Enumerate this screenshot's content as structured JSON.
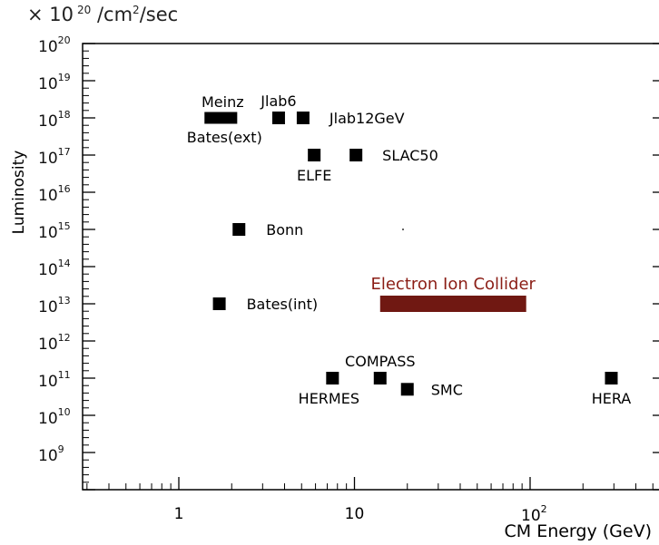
{
  "chart_data": {
    "type": "scatter",
    "title": "",
    "unit_label": {
      "prefix": "× 10",
      "exponent": "20",
      "unit_base": "/cm",
      "unit_exp": "2",
      "unit_tail": "/sec"
    },
    "ylabel": "Luminosity",
    "xlabel": "CM Energy (GeV)",
    "x_scale": "log",
    "y_scale": "log10-exponent",
    "xlim": [
      0.3,
      500
    ],
    "ylim": [
      8,
      20
    ],
    "x_tick_labels": [
      {
        "value": 1,
        "text": "1"
      },
      {
        "value": 10,
        "text": "10"
      },
      {
        "value": 100,
        "base": "10",
        "exp": "2"
      }
    ],
    "y_tick_labels": [
      {
        "exp": 20,
        "base": "10",
        "sup": "20"
      },
      {
        "exp": 19,
        "base": "10",
        "sup": "19"
      },
      {
        "exp": 18,
        "base": "10",
        "sup": "18"
      },
      {
        "exp": 17,
        "base": "10",
        "sup": "17"
      },
      {
        "exp": 16,
        "base": "10",
        "sup": "16"
      },
      {
        "exp": 15,
        "base": "10",
        "sup": "15"
      },
      {
        "exp": 14,
        "base": "10",
        "sup": "14"
      },
      {
        "exp": 13,
        "base": "10",
        "sup": "13"
      },
      {
        "exp": 12,
        "base": "10",
        "sup": "12"
      },
      {
        "exp": 11,
        "base": "10",
        "sup": "11"
      },
      {
        "exp": 10,
        "base": "10",
        "sup": "10"
      },
      {
        "exp": 9,
        "base": "10",
        "sup": "9"
      }
    ],
    "points": [
      {
        "name": "Jlab6",
        "x": 3.7,
        "y": 18,
        "label_pos": "above"
      },
      {
        "name": "Jlab12GeV",
        "x": 5.1,
        "y": 18,
        "label_pos": "right"
      },
      {
        "name": "ELFE",
        "x": 5.9,
        "y": 17,
        "label_pos": "below"
      },
      {
        "name": "SLAC50",
        "x": 10.2,
        "y": 17,
        "label_pos": "right"
      },
      {
        "name": "Bonn",
        "x": 2.2,
        "y": 15,
        "label_pos": "right"
      },
      {
        "name": "Bates(int)",
        "x": 1.7,
        "y": 13,
        "label_pos": "right"
      },
      {
        "name": "HERMES",
        "x": 7.5,
        "y": 11,
        "label_pos": "below"
      },
      {
        "name": "COMPASS",
        "x": 14,
        "y": 11,
        "label_pos": "above"
      },
      {
        "name": "SMC",
        "x": 20,
        "y": 10.7,
        "label_pos": "right"
      },
      {
        "name": "HERA",
        "x": 290,
        "y": 11,
        "label_pos": "below"
      }
    ],
    "ranges": [
      {
        "name": "Meinz",
        "name2": "Bates(ext)",
        "x0": 1.4,
        "x1": 2.15,
        "y": 18,
        "color": "#000000"
      },
      {
        "name": "Electron Ion Collider",
        "x0": 14,
        "x1": 95,
        "y": 13,
        "color": "#701812"
      }
    ],
    "colors": {
      "marker": "#000000",
      "eic": "#701812",
      "eic_label": "#8b1e16"
    }
  }
}
